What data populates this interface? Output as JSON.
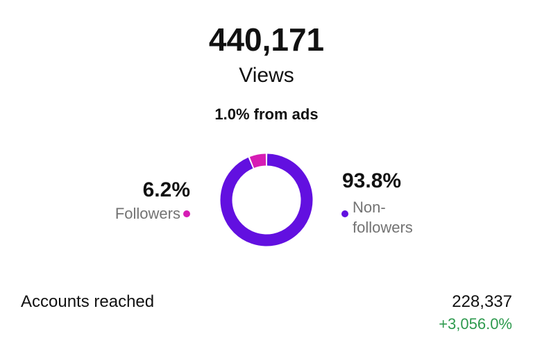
{
  "header": {
    "value": "440,171",
    "label": "Views",
    "note": "1.0% from ads"
  },
  "chart_data": {
    "type": "donut",
    "categories": [
      "Followers",
      "Non-followers"
    ],
    "values": [
      6.2,
      93.8
    ],
    "value_labels": [
      "6.2%",
      "93.8%"
    ],
    "colors": [
      "#d61cb4",
      "#6210e0"
    ]
  },
  "stats": {
    "label": "Accounts reached",
    "value": "228,337",
    "change": "+3,056.0%"
  }
}
